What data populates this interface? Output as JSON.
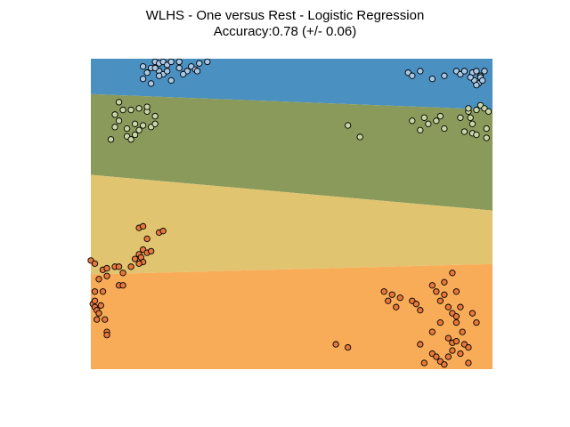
{
  "chart_data": {
    "type": "scatter",
    "title": "WLHS - One versus Rest - Logistic Regression",
    "subtitle": "Accuracy:0.78 (+/- 0.06)",
    "xlabel": "",
    "ylabel": "",
    "xlim": [
      0,
      1
    ],
    "ylim": [
      0,
      1
    ],
    "axes_visible": false,
    "grid": false,
    "legend": "none",
    "decision_regions": [
      {
        "class": 0,
        "color": "#4a90c0",
        "boundary_to_next": {
          "left_y": 0.886,
          "right_y": 0.836
        }
      },
      {
        "class": 1,
        "color": "#8a9a5b",
        "boundary_to_next": {
          "left_y": 0.626,
          "right_y": 0.511
        }
      },
      {
        "class": 2,
        "color": "#e1c46f",
        "boundary_to_next": {
          "left_y": 0.305,
          "right_y": 0.339
        }
      },
      {
        "class": 3,
        "color": "#f9ac58"
      }
    ],
    "series": [
      {
        "class": 0,
        "color": "#a8c8e8",
        "points": [
          [
            0.13,
            0.975
          ],
          [
            0.15,
            0.97
          ],
          [
            0.16,
            0.99
          ],
          [
            0.17,
            0.985
          ],
          [
            0.18,
            0.99
          ],
          [
            0.19,
            0.98
          ],
          [
            0.2,
            0.99
          ],
          [
            0.17,
            0.96
          ],
          [
            0.14,
            0.955
          ],
          [
            0.18,
            0.95
          ],
          [
            0.22,
            0.97
          ],
          [
            0.25,
            0.975
          ],
          [
            0.26,
            0.965
          ],
          [
            0.27,
            0.985
          ],
          [
            0.24,
            0.96
          ],
          [
            0.2,
            0.93
          ],
          [
            0.15,
            0.92
          ],
          [
            0.13,
            0.935
          ],
          [
            0.17,
            0.945
          ],
          [
            0.23,
            0.95
          ],
          [
            0.19,
            0.96
          ],
          [
            0.22,
            0.99
          ],
          [
            0.265,
            0.96
          ],
          [
            0.29,
            0.99
          ],
          [
            0.16,
            0.97
          ],
          [
            0.79,
            0.955
          ],
          [
            0.8,
            0.945
          ],
          [
            0.82,
            0.96
          ],
          [
            0.85,
            0.935
          ],
          [
            0.91,
            0.96
          ],
          [
            0.92,
            0.95
          ],
          [
            0.93,
            0.96
          ],
          [
            0.95,
            0.955
          ],
          [
            0.96,
            0.96
          ],
          [
            0.97,
            0.945
          ],
          [
            0.955,
            0.93
          ],
          [
            0.965,
            0.92
          ],
          [
            0.97,
            0.94
          ],
          [
            0.96,
            0.915
          ],
          [
            0.98,
            0.96
          ],
          [
            0.975,
            0.93
          ],
          [
            0.88,
            0.945
          ],
          [
            0.945,
            0.94
          ]
        ]
      },
      {
        "class": 1,
        "color": "#c9d6a6",
        "points": [
          [
            0.07,
            0.86
          ],
          [
            0.08,
            0.835
          ],
          [
            0.06,
            0.82
          ],
          [
            0.1,
            0.835
          ],
          [
            0.12,
            0.84
          ],
          [
            0.14,
            0.83
          ],
          [
            0.16,
            0.815
          ],
          [
            0.11,
            0.79
          ],
          [
            0.09,
            0.775
          ],
          [
            0.13,
            0.785
          ],
          [
            0.05,
            0.74
          ],
          [
            0.09,
            0.75
          ],
          [
            0.11,
            0.755
          ],
          [
            0.15,
            0.78
          ],
          [
            0.16,
            0.79
          ],
          [
            0.07,
            0.8
          ],
          [
            0.06,
            0.78
          ],
          [
            0.14,
            0.845
          ],
          [
            0.1,
            0.74
          ],
          [
            0.12,
            0.77
          ],
          [
            0.64,
            0.785
          ],
          [
            0.67,
            0.748
          ],
          [
            0.8,
            0.8
          ],
          [
            0.83,
            0.81
          ],
          [
            0.84,
            0.79
          ],
          [
            0.86,
            0.8
          ],
          [
            0.87,
            0.815
          ],
          [
            0.88,
            0.775
          ],
          [
            0.82,
            0.77
          ],
          [
            0.92,
            0.81
          ],
          [
            0.94,
            0.83
          ],
          [
            0.96,
            0.835
          ],
          [
            0.97,
            0.85
          ],
          [
            0.98,
            0.84
          ],
          [
            0.99,
            0.83
          ],
          [
            0.93,
            0.765
          ],
          [
            0.95,
            0.76
          ],
          [
            0.96,
            0.755
          ],
          [
            0.985,
            0.775
          ],
          [
            0.985,
            0.745
          ],
          [
            0.945,
            0.81
          ],
          [
            0.95,
            0.79
          ],
          [
            0.94,
            0.84
          ]
        ]
      },
      {
        "class": 3,
        "color": "#e6783c",
        "points": [
          [
            0.12,
            0.455
          ],
          [
            0.13,
            0.46
          ],
          [
            0.17,
            0.44
          ],
          [
            0.18,
            0.445
          ],
          [
            0.14,
            0.42
          ],
          [
            0.13,
            0.385
          ],
          [
            0.14,
            0.375
          ],
          [
            0.15,
            0.38
          ],
          [
            0.12,
            0.37
          ],
          [
            0.125,
            0.36
          ],
          [
            0.13,
            0.345
          ],
          [
            0.12,
            0.34
          ],
          [
            0.11,
            0.355
          ],
          [
            0.0,
            0.35
          ],
          [
            0.01,
            0.34
          ],
          [
            0.03,
            0.32
          ],
          [
            0.04,
            0.325
          ],
          [
            0.06,
            0.33
          ],
          [
            0.07,
            0.33
          ],
          [
            0.08,
            0.31
          ],
          [
            0.1,
            0.33
          ],
          [
            0.02,
            0.29
          ],
          [
            0.04,
            0.3
          ],
          [
            0.07,
            0.27
          ],
          [
            0.08,
            0.27
          ],
          [
            0.01,
            0.25
          ],
          [
            0.03,
            0.25
          ],
          [
            0.005,
            0.21
          ],
          [
            0.01,
            0.2
          ],
          [
            0.015,
            0.19
          ],
          [
            0.025,
            0.205
          ],
          [
            0.02,
            0.18
          ],
          [
            0.015,
            0.16
          ],
          [
            0.035,
            0.16
          ],
          [
            0.04,
            0.12
          ],
          [
            0.04,
            0.11
          ],
          [
            0.01,
            0.22
          ],
          [
            0.73,
            0.25
          ],
          [
            0.74,
            0.22
          ],
          [
            0.75,
            0.24
          ],
          [
            0.76,
            0.2
          ],
          [
            0.77,
            0.23
          ],
          [
            0.8,
            0.22
          ],
          [
            0.81,
            0.21
          ],
          [
            0.82,
            0.19
          ],
          [
            0.85,
            0.27
          ],
          [
            0.86,
            0.25
          ],
          [
            0.87,
            0.22
          ],
          [
            0.88,
            0.24
          ],
          [
            0.89,
            0.2
          ],
          [
            0.9,
            0.18
          ],
          [
            0.91,
            0.17
          ],
          [
            0.92,
            0.2
          ],
          [
            0.87,
            0.15
          ],
          [
            0.85,
            0.12
          ],
          [
            0.82,
            0.08
          ],
          [
            0.83,
            0.02
          ],
          [
            0.85,
            0.05
          ],
          [
            0.86,
            0.04
          ],
          [
            0.87,
            0.025
          ],
          [
            0.88,
            0.015
          ],
          [
            0.89,
            0.04
          ],
          [
            0.9,
            0.085
          ],
          [
            0.91,
            0.09
          ],
          [
            0.93,
            0.08
          ],
          [
            0.94,
            0.07
          ],
          [
            0.9,
            0.06
          ],
          [
            0.92,
            0.05
          ],
          [
            0.94,
            0.02
          ],
          [
            0.96,
            0.15
          ],
          [
            0.91,
            0.15
          ],
          [
            0.925,
            0.12
          ],
          [
            0.89,
            0.1
          ],
          [
            0.95,
            0.18
          ],
          [
            0.88,
            0.28
          ],
          [
            0.9,
            0.31
          ],
          [
            0.91,
            0.25
          ],
          [
            0.61,
            0.08
          ],
          [
            0.64,
            0.07
          ]
        ]
      }
    ]
  }
}
